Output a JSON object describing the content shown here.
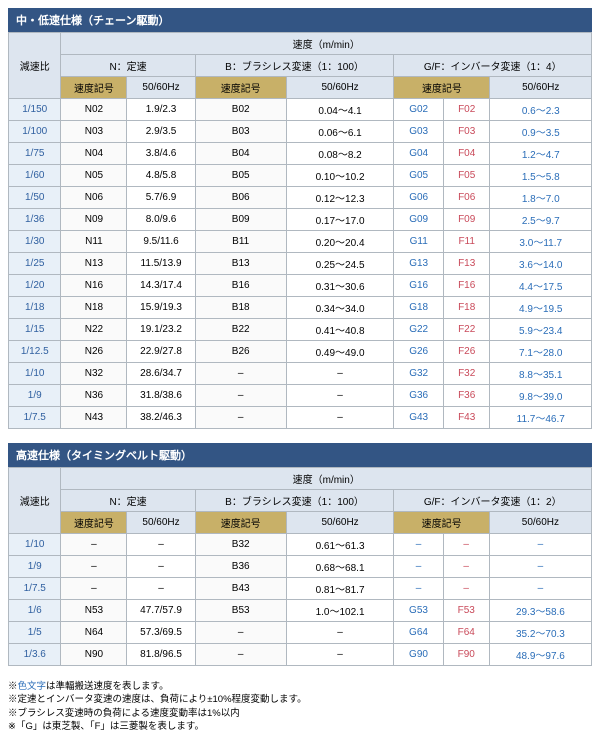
{
  "colors": {
    "header_bg": "#335584",
    "header_fg": "#ffffff",
    "th_blue": "#dde5ef",
    "th_gold": "#c8b068",
    "ratio_bg": "#e8f0f8",
    "ratio_fg": "#3060a0",
    "g_fg": "#2a6db8",
    "f_fg": "#c94a5a",
    "range_fg": "#2a6db8",
    "border": "#b0b8c0"
  },
  "table1": {
    "title": "中・低速仕様（チェーン駆動）",
    "super_header": "速度（m/min）",
    "col_ratio": "減速比",
    "groups": {
      "n": "N：定速",
      "b": "B：ブラシレス変速（1：100）",
      "gf": "G/F：インバータ変速（1：4）"
    },
    "sub": {
      "code": "速度記号",
      "hz": "50/60Hz"
    },
    "rows": [
      {
        "r": "1/150",
        "n": "N02",
        "nhz": "1.9/2.3",
        "b": "B02",
        "bhz": "0.04～4.1",
        "g": "G02",
        "f": "F02",
        "gfhz": "0.6～2.3"
      },
      {
        "r": "1/100",
        "n": "N03",
        "nhz": "2.9/3.5",
        "b": "B03",
        "bhz": "0.06～6.1",
        "g": "G03",
        "f": "F03",
        "gfhz": "0.9～3.5"
      },
      {
        "r": "1/75",
        "n": "N04",
        "nhz": "3.8/4.6",
        "b": "B04",
        "bhz": "0.08～8.2",
        "g": "G04",
        "f": "F04",
        "gfhz": "1.2～4.7"
      },
      {
        "r": "1/60",
        "n": "N05",
        "nhz": "4.8/5.8",
        "b": "B05",
        "bhz": "0.10～10.2",
        "g": "G05",
        "f": "F05",
        "gfhz": "1.5～5.8"
      },
      {
        "r": "1/50",
        "n": "N06",
        "nhz": "5.7/6.9",
        "b": "B06",
        "bhz": "0.12～12.3",
        "g": "G06",
        "f": "F06",
        "gfhz": "1.8～7.0"
      },
      {
        "r": "1/36",
        "n": "N09",
        "nhz": "8.0/9.6",
        "b": "B09",
        "bhz": "0.17～17.0",
        "g": "G09",
        "f": "F09",
        "gfhz": "2.5～9.7"
      },
      {
        "r": "1/30",
        "n": "N11",
        "nhz": "9.5/11.6",
        "b": "B11",
        "bhz": "0.20～20.4",
        "g": "G11",
        "f": "F11",
        "gfhz": "3.0～11.7"
      },
      {
        "r": "1/25",
        "n": "N13",
        "nhz": "11.5/13.9",
        "b": "B13",
        "bhz": "0.25～24.5",
        "g": "G13",
        "f": "F13",
        "gfhz": "3.6～14.0"
      },
      {
        "r": "1/20",
        "n": "N16",
        "nhz": "14.3/17.4",
        "b": "B16",
        "bhz": "0.31～30.6",
        "g": "G16",
        "f": "F16",
        "gfhz": "4.4～17.5"
      },
      {
        "r": "1/18",
        "n": "N18",
        "nhz": "15.9/19.3",
        "b": "B18",
        "bhz": "0.34～34.0",
        "g": "G18",
        "f": "F18",
        "gfhz": "4.9～19.5"
      },
      {
        "r": "1/15",
        "n": "N22",
        "nhz": "19.1/23.2",
        "b": "B22",
        "bhz": "0.41～40.8",
        "g": "G22",
        "f": "F22",
        "gfhz": "5.9～23.4"
      },
      {
        "r": "1/12.5",
        "n": "N26",
        "nhz": "22.9/27.8",
        "b": "B26",
        "bhz": "0.49～49.0",
        "g": "G26",
        "f": "F26",
        "gfhz": "7.1～28.0"
      },
      {
        "r": "1/10",
        "n": "N32",
        "nhz": "28.6/34.7",
        "b": "–",
        "bhz": "–",
        "g": "G32",
        "f": "F32",
        "gfhz": "8.8～35.1"
      },
      {
        "r": "1/9",
        "n": "N36",
        "nhz": "31.8/38.6",
        "b": "–",
        "bhz": "–",
        "g": "G36",
        "f": "F36",
        "gfhz": "9.8～39.0"
      },
      {
        "r": "1/7.5",
        "n": "N43",
        "nhz": "38.2/46.3",
        "b": "–",
        "bhz": "–",
        "g": "G43",
        "f": "F43",
        "gfhz": "11.7～46.7"
      }
    ]
  },
  "table2": {
    "title": "高速仕様（タイミングベルト駆動）",
    "super_header": "速度（m/min）",
    "col_ratio": "減速比",
    "groups": {
      "n": "N：定速",
      "b": "B：ブラシレス変速（1：100）",
      "gf": "G/F：インバータ変速（1：2）"
    },
    "sub": {
      "code": "速度記号",
      "hz": "50/60Hz"
    },
    "rows": [
      {
        "r": "1/10",
        "n": "–",
        "nhz": "–",
        "b": "B32",
        "bhz": "0.61～61.3",
        "g": "–",
        "f": "–",
        "gfhz": "–"
      },
      {
        "r": "1/9",
        "n": "–",
        "nhz": "–",
        "b": "B36",
        "bhz": "0.68～68.1",
        "g": "–",
        "f": "–",
        "gfhz": "–"
      },
      {
        "r": "1/7.5",
        "n": "–",
        "nhz": "–",
        "b": "B43",
        "bhz": "0.81～81.7",
        "g": "–",
        "f": "–",
        "gfhz": "–"
      },
      {
        "r": "1/6",
        "n": "N53",
        "nhz": "47.7/57.9",
        "b": "B53",
        "bhz": "1.0～102.1",
        "g": "G53",
        "f": "F53",
        "gfhz": "29.3～58.6"
      },
      {
        "r": "1/5",
        "n": "N64",
        "nhz": "57.3/69.5",
        "b": "–",
        "bhz": "–",
        "g": "G64",
        "f": "F64",
        "gfhz": "35.2～70.3"
      },
      {
        "r": "1/3.6",
        "n": "N90",
        "nhz": "81.8/96.5",
        "b": "–",
        "bhz": "–",
        "g": "G90",
        "f": "F90",
        "gfhz": "48.9～97.6"
      }
    ]
  },
  "footnotes": {
    "l1a": "※",
    "l1b": "色文字",
    "l1c": "は準輻搬送速度を表します。",
    "l2": "※定速とインバータ変速の速度は、負荷により±10%程度変動します。",
    "l3": "※ブラシレス変速時の負荷による速度変動率は1%以内",
    "l4": "※「G」は東芝製、「F」は三菱製を表します。"
  }
}
